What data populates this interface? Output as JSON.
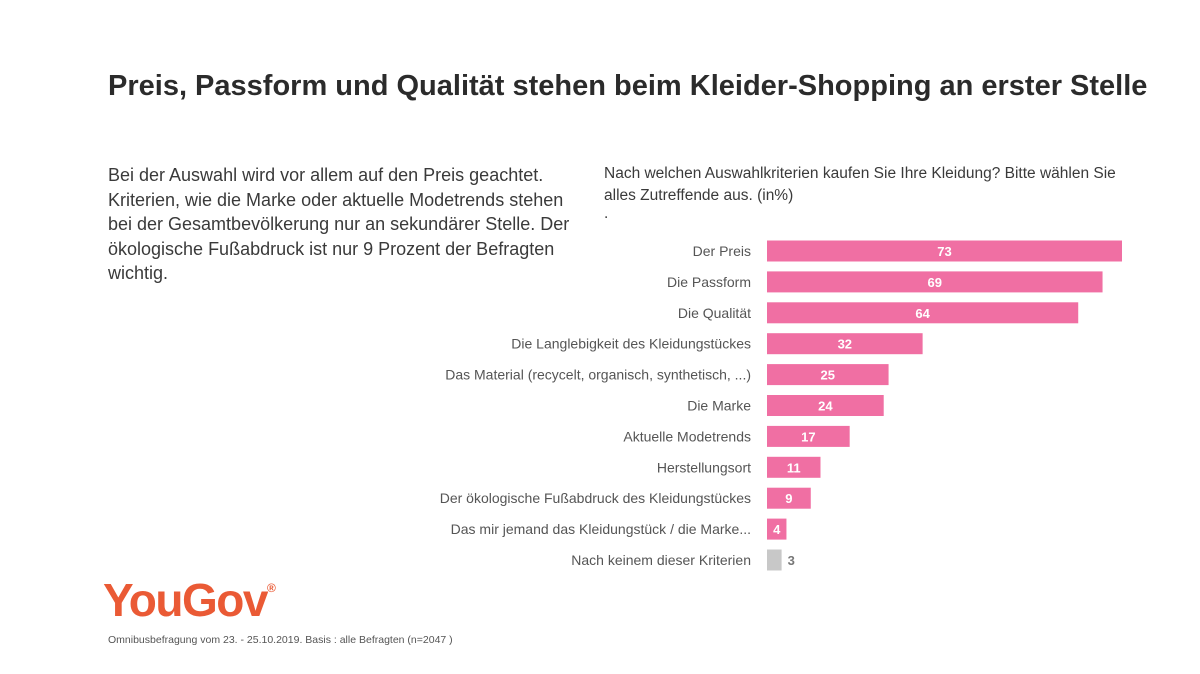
{
  "title": "Preis, Passform und Qualität stehen beim Kleider-Shopping an erster Stelle",
  "description": "Bei der Auswahl wird vor allem auf den Preis geachtet. Kriterien, wie die Marke oder aktuelle Modetrends stehen bei der Gesamtbevölkerung nur an sekundärer Stelle. Der ökologische Fußabdruck ist nur 9 Prozent der Befragten wichtig.",
  "question": "Nach welchen Auswahlkriterien kaufen Sie Ihre Kleidung? Bitte wählen Sie alles Zutreffende aus. (in%)",
  "question_dot": ".",
  "logo": {
    "text": "YouGov",
    "mark": "®",
    "color": "#ea5a35"
  },
  "footnote": "Omnibusbefragung vom 23. - 25.10.2019. Basis : alle Befragten (n=2047 )",
  "colors": {
    "bar": "#f06fa3",
    "bar_muted": "#c8c8c8",
    "value_on_bar": "#ffffff",
    "value_outside": "#777777"
  },
  "chart_data": {
    "type": "bar",
    "orientation": "horizontal",
    "categories": [
      "Der Preis",
      "Die Passform",
      "Die Qualität",
      "Die Langlebigkeit des Kleidungstückes",
      "Das Material (recycelt, organisch, synthetisch, ...)",
      "Die Marke",
      "Aktuelle Modetrends",
      "Herstellungsort",
      "Der ökologische Fußabdruck des Kleidungstückes",
      "Das mir jemand das Kleidungstück / die Marke...",
      "Nach keinem dieser Kriterien"
    ],
    "values": [
      73,
      69,
      64,
      32,
      25,
      24,
      17,
      11,
      9,
      4,
      3
    ],
    "value_labels": [
      "73",
      "69",
      "64",
      "32",
      "25",
      "24",
      "17",
      "11",
      "9",
      "4",
      "3"
    ],
    "xlim": [
      0,
      73
    ],
    "grid": false,
    "legend": "none"
  }
}
